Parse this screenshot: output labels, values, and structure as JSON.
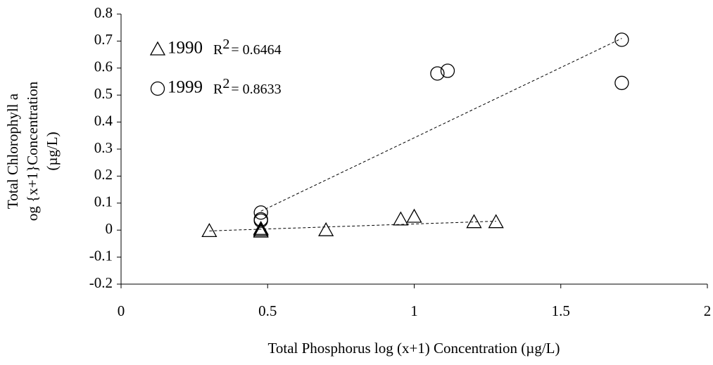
{
  "chart_data": {
    "type": "scatter",
    "x_label": "Total Phosphorus log (x+1) Concentration (µg/L)",
    "y_label": [
      "Total Chlorophyll a",
      "og {x+1}Concentration",
      "(µg/L)"
    ],
    "xlim": [
      0,
      2
    ],
    "xticks": [
      0,
      0.5,
      1,
      1.5,
      2
    ],
    "ylim": [
      -0.2,
      0.8
    ],
    "yticks": [
      -0.2,
      -0.1,
      0,
      0.1,
      0.2,
      0.3,
      0.4,
      0.5,
      0.6,
      0.7,
      0.8
    ],
    "grid": false,
    "series": [
      {
        "name": "1990",
        "marker": "triangle",
        "color": "#000000",
        "x": [
          0.301,
          0.477,
          0.477,
          0.477,
          0.699,
          0.954,
          1.0,
          1.204,
          1.279
        ],
        "values": [
          -0.003,
          0.0,
          0.005,
          -0.005,
          0.0,
          0.04,
          0.05,
          0.03,
          0.03
        ],
        "trendline": {
          "x": [
            0.301,
            1.279
          ],
          "values": [
            -0.003,
            0.033
          ]
        },
        "r2_label": [
          "R",
          "2",
          "= 0.6464"
        ]
      },
      {
        "name": "1999",
        "marker": "circle",
        "color": "#000000",
        "x": [
          0.477,
          0.477,
          0.477,
          1.079,
          1.114,
          1.708,
          1.708
        ],
        "values": [
          0.065,
          0.04,
          0.035,
          0.58,
          0.59,
          0.705,
          0.545
        ],
        "trendline": {
          "x": [
            0.477,
            1.708
          ],
          "values": [
            0.07,
            0.71
          ]
        },
        "r2_label": [
          "R",
          "2",
          "= 0.8633"
        ]
      }
    ]
  }
}
